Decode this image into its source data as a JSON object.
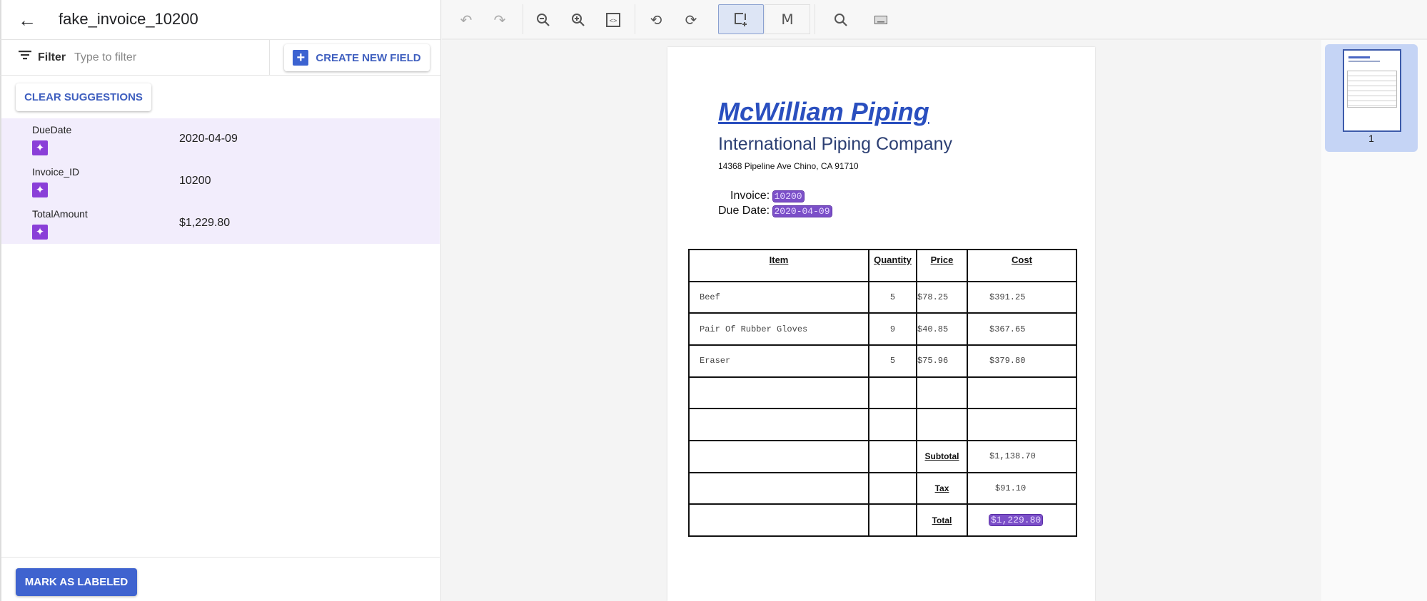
{
  "header": {
    "title": "fake_invoice_10200",
    "back_icon": "arrow-left-icon"
  },
  "filter": {
    "label": "Filter",
    "placeholder": "Type to filter",
    "value": ""
  },
  "buttons": {
    "create_new_field": "CREATE NEW FIELD",
    "clear_suggestions": "CLEAR SUGGESTIONS",
    "mark_as_labeled": "MARK AS LABELED"
  },
  "fields": [
    {
      "name": "DueDate",
      "value": "2020-04-09",
      "icon": "sparkle-icon"
    },
    {
      "name": "Invoice_ID",
      "value": "10200",
      "icon": "sparkle-icon"
    },
    {
      "name": "TotalAmount",
      "value": "$1,229.80",
      "icon": "sparkle-icon"
    }
  ],
  "toolbar": [
    "undo-icon",
    "redo-icon",
    "zoom-out-icon",
    "zoom-in-icon",
    "fit-width-icon",
    "rotate-left-icon",
    "rotate-right-icon",
    "bounding-box-icon",
    "text-select-icon",
    "search-icon",
    "keyboard-icon"
  ],
  "document": {
    "company": "McWilliam Piping",
    "subtitle": "International Piping Company",
    "address": "14368 Pipeline Ave Chino, CA 91710",
    "invoice_label": "Invoice:",
    "invoice_value": "10200",
    "due_label": "Due Date:",
    "due_value": "2020-04-09",
    "table": {
      "headers": [
        "Item",
        "Quantity",
        "Price",
        "Cost"
      ],
      "rows": [
        [
          "Beef",
          "5",
          "$78.25",
          "$391.25"
        ],
        [
          "Pair Of Rubber Gloves",
          "9",
          "$40.85",
          "$367.65"
        ],
        [
          "Eraser",
          "5",
          "$75.96",
          "$379.80"
        ]
      ],
      "subtotal_label": "Subtotal",
      "subtotal": "$1,138.70",
      "tax_label": "Tax",
      "tax": "$91.10",
      "total_label": "Total",
      "total": "$1,229.80"
    }
  },
  "thumbnails": [
    {
      "page": "1",
      "selected": true
    }
  ],
  "colors": {
    "accent": "#3f63cf",
    "suggestion_bg": "#f2edfc",
    "highlight": "#7b4fc8"
  }
}
